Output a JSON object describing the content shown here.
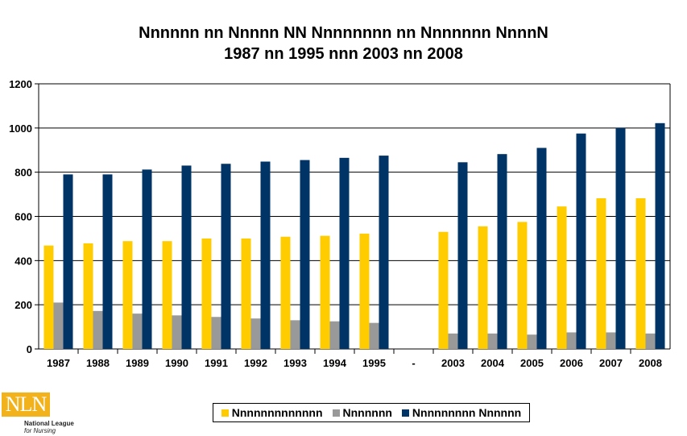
{
  "chart_data": {
    "type": "bar",
    "title_line1": "Nnnnnn nn Nnnnn NN Nnnnnnnn nn Nnnnnnn NnnnN",
    "title_line2": "1987 nn 1995 nnn 2003 nn 2008",
    "categories": [
      "1987",
      "1988",
      "1989",
      "1990",
      "1991",
      "1992",
      "1993",
      "1994",
      "1995",
      "-",
      "2003",
      "2004",
      "2005",
      "2006",
      "2007",
      "2008"
    ],
    "series": [
      {
        "name": "Nnnnnnnnnnnnn",
        "color": "#FFCC00",
        "values": [
          468,
          478,
          488,
          488,
          500,
          500,
          508,
          512,
          522,
          null,
          530,
          555,
          575,
          645,
          682,
          682
        ]
      },
      {
        "name": "Nnnnnnn",
        "color": "#999999",
        "values": [
          210,
          172,
          160,
          152,
          145,
          138,
          130,
          125,
          118,
          null,
          70,
          70,
          65,
          75,
          75,
          70
        ]
      },
      {
        "name": "Nnnnnnnnn Nnnnnn",
        "color": "#003366",
        "values": [
          790,
          790,
          812,
          830,
          838,
          848,
          855,
          865,
          875,
          null,
          845,
          882,
          910,
          975,
          1000,
          1022
        ]
      }
    ],
    "ylim": [
      0,
      1200
    ],
    "yticks": [
      0,
      200,
      400,
      600,
      800,
      1000,
      1200
    ],
    "grid": true,
    "legend": "bottom-center"
  },
  "logo": {
    "mark": "NLN",
    "line1": "National League",
    "line2": "for Nursing"
  }
}
